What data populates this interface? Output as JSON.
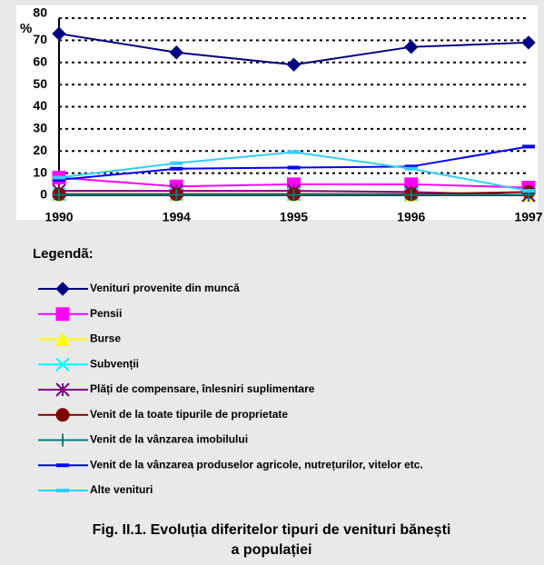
{
  "chart_data": {
    "type": "line",
    "title": [
      "Fig. II.1.  Evoluția diferitelor tipuri de venituri bănești",
      "a populației"
    ],
    "y_label": "%",
    "legend_title": "Legendã:",
    "categories": [
      "1990",
      "1994",
      "1995",
      "1996",
      "1997"
    ],
    "ylim": [
      0,
      80
    ],
    "yticks": [
      0,
      10,
      20,
      30,
      40,
      50,
      60,
      70,
      80
    ],
    "grid": true,
    "series": [
      {
        "name": "Venituri provenite din muncă",
        "color": "#000080",
        "marker": "diamond",
        "values": [
          73,
          64.5,
          59,
          67,
          69
        ]
      },
      {
        "name": "Pensii",
        "color": "#ff00ff",
        "marker": "square",
        "values": [
          8,
          4,
          5,
          5,
          3.5
        ]
      },
      {
        "name": "Burse",
        "color": "#ffff00",
        "marker": "triangle",
        "values": [
          0.5,
          0.5,
          0.5,
          0.3,
          0.2
        ]
      },
      {
        "name": "Subvenții",
        "color": "#00ffff",
        "marker": "x",
        "values": [
          0.5,
          0.5,
          0.5,
          0.5,
          0.3
        ]
      },
      {
        "name": "Plăți de compensare, înlesniri suplimentare",
        "color": "#800080",
        "marker": "asterisk",
        "values": [
          2,
          2,
          2,
          1.5,
          0
        ]
      },
      {
        "name": "Venit de la toate tipurile de proprietate",
        "color": "#800000",
        "marker": "circle",
        "values": [
          0.5,
          0.5,
          0.5,
          0.5,
          1.5
        ]
      },
      {
        "name": "Venit de la vânzarea imobilului",
        "color": "#008080",
        "marker": "plus",
        "values": [
          0.2,
          0.2,
          0.2,
          0.2,
          0.2
        ]
      },
      {
        "name": "Venit de la vânzarea produselor agricole, nutrețurilor, vitelor etc.",
        "color": "#0000ff",
        "marker": "dash",
        "values": [
          7,
          12,
          12.5,
          13,
          22
        ]
      },
      {
        "name": "Alte venituri",
        "color": "#33ccff",
        "marker": "dash",
        "values": [
          8,
          14.5,
          19.5,
          12,
          2
        ]
      }
    ]
  }
}
